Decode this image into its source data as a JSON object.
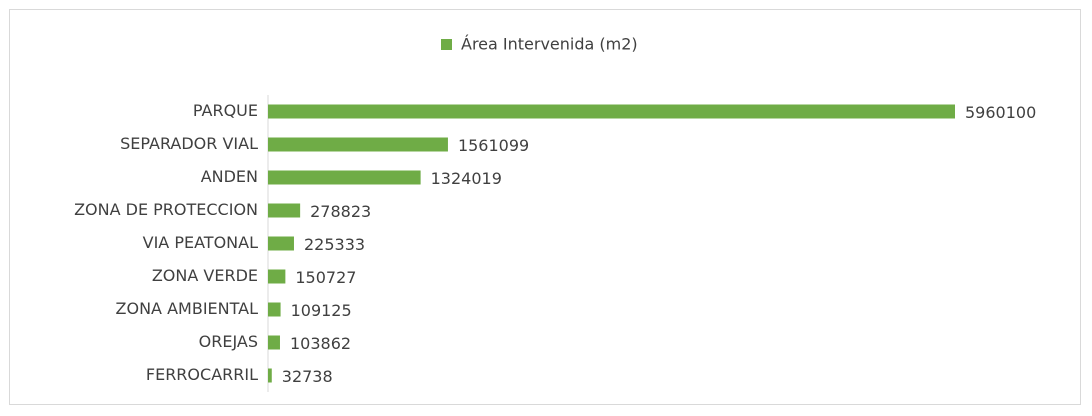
{
  "chart_data": {
    "type": "barh",
    "categories": [
      "PARQUE",
      "SEPARADOR VIAL",
      "ANDEN",
      "ZONA DE PROTECCION",
      "VIA PEATONAL",
      "ZONA VERDE",
      "ZONA AMBIENTAL",
      "OREJAS",
      "FERROCARRIL"
    ],
    "series": [
      {
        "name": "Área Intervenida (m2)",
        "color": "#6fac46",
        "values": [
          5960100,
          1561099,
          1324019,
          278823,
          225333,
          150727,
          109125,
          103862,
          32738
        ]
      }
    ],
    "legend": "top"
  }
}
